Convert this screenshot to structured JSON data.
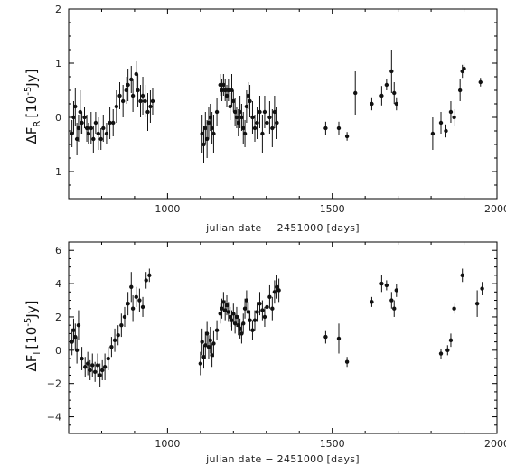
{
  "chart_data": [
    {
      "type": "scatter",
      "ylabel_main": "ΔF",
      "ylabel_sub": "R",
      "ylabel_rest": "[10",
      "ylabel_exp": "-5",
      "ylabel_unit": "Jy]",
      "xlabel": "julian date − 2451000 [days]",
      "xlim": [
        700,
        2000
      ],
      "ylim": [
        -1.5,
        2
      ],
      "xticks": [
        1000,
        1500,
        2000
      ],
      "xtick_labels": [
        "1000",
        "1500",
        "2000"
      ],
      "yticks": [
        -1,
        0,
        1,
        2
      ],
      "ytick_labels": [
        "−1",
        "0",
        "1",
        "2"
      ],
      "error_bars": true,
      "points": [
        {
          "x": 710,
          "y": -0.3,
          "e": 0.25
        },
        {
          "x": 715,
          "y": 0.0,
          "e": 0.3
        },
        {
          "x": 720,
          "y": 0.2,
          "e": 0.35
        },
        {
          "x": 725,
          "y": -0.4,
          "e": 0.3
        },
        {
          "x": 730,
          "y": -0.2,
          "e": 0.25
        },
        {
          "x": 735,
          "y": 0.1,
          "e": 0.4
        },
        {
          "x": 740,
          "y": -0.1,
          "e": 0.2
        },
        {
          "x": 748,
          "y": 0.0,
          "e": 0.2
        },
        {
          "x": 755,
          "y": -0.2,
          "e": 0.25
        },
        {
          "x": 760,
          "y": -0.3,
          "e": 0.2
        },
        {
          "x": 768,
          "y": -0.2,
          "e": 0.3
        },
        {
          "x": 775,
          "y": -0.4,
          "e": 0.25
        },
        {
          "x": 782,
          "y": -0.1,
          "e": 0.2
        },
        {
          "x": 790,
          "y": -0.3,
          "e": 0.3
        },
        {
          "x": 798,
          "y": -0.4,
          "e": 0.2
        },
        {
          "x": 805,
          "y": -0.2,
          "e": 0.25
        },
        {
          "x": 815,
          "y": -0.3,
          "e": 0.2
        },
        {
          "x": 825,
          "y": -0.1,
          "e": 0.3
        },
        {
          "x": 835,
          "y": -0.1,
          "e": 0.25
        },
        {
          "x": 845,
          "y": 0.2,
          "e": 0.3
        },
        {
          "x": 855,
          "y": 0.4,
          "e": 0.25
        },
        {
          "x": 865,
          "y": 0.3,
          "e": 0.3
        },
        {
          "x": 875,
          "y": 0.5,
          "e": 0.25
        },
        {
          "x": 880,
          "y": 0.6,
          "e": 0.3
        },
        {
          "x": 890,
          "y": 0.7,
          "e": 0.25
        },
        {
          "x": 895,
          "y": 0.4,
          "e": 0.3
        },
        {
          "x": 905,
          "y": 0.8,
          "e": 0.25
        },
        {
          "x": 910,
          "y": 0.5,
          "e": 0.3
        },
        {
          "x": 918,
          "y": 0.3,
          "e": 0.3
        },
        {
          "x": 925,
          "y": 0.4,
          "e": 0.35
        },
        {
          "x": 932,
          "y": 0.3,
          "e": 0.3
        },
        {
          "x": 940,
          "y": 0.1,
          "e": 0.35
        },
        {
          "x": 948,
          "y": 0.2,
          "e": 0.3
        },
        {
          "x": 955,
          "y": 0.3,
          "e": 0.25
        },
        {
          "x": 1105,
          "y": -0.3,
          "e": 0.35
        },
        {
          "x": 1110,
          "y": -0.5,
          "e": 0.35
        },
        {
          "x": 1115,
          "y": -0.2,
          "e": 0.3
        },
        {
          "x": 1120,
          "y": -0.4,
          "e": 0.35
        },
        {
          "x": 1125,
          "y": -0.1,
          "e": 0.3
        },
        {
          "x": 1130,
          "y": 0.0,
          "e": 0.25
        },
        {
          "x": 1135,
          "y": -0.2,
          "e": 0.3
        },
        {
          "x": 1140,
          "y": -0.3,
          "e": 0.35
        },
        {
          "x": 1150,
          "y": 0.1,
          "e": 0.25
        },
        {
          "x": 1160,
          "y": 0.6,
          "e": 0.2
        },
        {
          "x": 1165,
          "y": 0.5,
          "e": 0.2
        },
        {
          "x": 1170,
          "y": 0.6,
          "e": 0.2
        },
        {
          "x": 1175,
          "y": 0.5,
          "e": 0.2
        },
        {
          "x": 1180,
          "y": 0.4,
          "e": 0.2
        },
        {
          "x": 1185,
          "y": 0.5,
          "e": 0.2
        },
        {
          "x": 1190,
          "y": 0.2,
          "e": 0.25
        },
        {
          "x": 1195,
          "y": 0.5,
          "e": 0.3
        },
        {
          "x": 1200,
          "y": 0.3,
          "e": 0.2
        },
        {
          "x": 1205,
          "y": 0.1,
          "e": 0.25
        },
        {
          "x": 1210,
          "y": 0.0,
          "e": 0.2
        },
        {
          "x": 1215,
          "y": -0.1,
          "e": 0.25
        },
        {
          "x": 1220,
          "y": 0.1,
          "e": 0.3
        },
        {
          "x": 1225,
          "y": 0.0,
          "e": 0.25
        },
        {
          "x": 1230,
          "y": -0.2,
          "e": 0.3
        },
        {
          "x": 1235,
          "y": -0.3,
          "e": 0.25
        },
        {
          "x": 1240,
          "y": 0.2,
          "e": 0.3
        },
        {
          "x": 1245,
          "y": 0.4,
          "e": 0.25
        },
        {
          "x": 1250,
          "y": 0.3,
          "e": 0.3
        },
        {
          "x": 1258,
          "y": 0.0,
          "e": 0.3
        },
        {
          "x": 1265,
          "y": -0.2,
          "e": 0.25
        },
        {
          "x": 1272,
          "y": -0.1,
          "e": 0.3
        },
        {
          "x": 1280,
          "y": 0.1,
          "e": 0.3
        },
        {
          "x": 1288,
          "y": -0.3,
          "e": 0.35
        },
        {
          "x": 1295,
          "y": 0.1,
          "e": 0.3
        },
        {
          "x": 1302,
          "y": -0.1,
          "e": 0.35
        },
        {
          "x": 1310,
          "y": 0.0,
          "e": 0.3
        },
        {
          "x": 1318,
          "y": -0.2,
          "e": 0.35
        },
        {
          "x": 1325,
          "y": 0.1,
          "e": 0.3
        },
        {
          "x": 1332,
          "y": -0.1,
          "e": 0.3
        },
        {
          "x": 1480,
          "y": -0.2,
          "e": 0.12
        },
        {
          "x": 1520,
          "y": -0.2,
          "e": 0.12
        },
        {
          "x": 1545,
          "y": -0.35,
          "e": 0.08
        },
        {
          "x": 1570,
          "y": 0.45,
          "e": 0.4
        },
        {
          "x": 1620,
          "y": 0.25,
          "e": 0.12
        },
        {
          "x": 1650,
          "y": 0.4,
          "e": 0.18
        },
        {
          "x": 1665,
          "y": 0.6,
          "e": 0.1
        },
        {
          "x": 1680,
          "y": 0.85,
          "e": 0.4
        },
        {
          "x": 1688,
          "y": 0.45,
          "e": 0.2
        },
        {
          "x": 1695,
          "y": 0.25,
          "e": 0.12
        },
        {
          "x": 1805,
          "y": -0.3,
          "e": 0.3
        },
        {
          "x": 1830,
          "y": -0.1,
          "e": 0.2
        },
        {
          "x": 1845,
          "y": -0.25,
          "e": 0.12
        },
        {
          "x": 1860,
          "y": 0.1,
          "e": 0.2
        },
        {
          "x": 1870,
          "y": 0.0,
          "e": 0.15
        },
        {
          "x": 1888,
          "y": 0.5,
          "e": 0.2
        },
        {
          "x": 1895,
          "y": 0.85,
          "e": 0.12
        },
        {
          "x": 1900,
          "y": 0.9,
          "e": 0.1
        },
        {
          "x": 1950,
          "y": 0.65,
          "e": 0.08
        }
      ]
    },
    {
      "type": "scatter",
      "ylabel_main": "ΔF",
      "ylabel_sub": "I",
      "ylabel_rest": "[10",
      "ylabel_exp": "-5",
      "ylabel_unit": "Jy]",
      "xlabel": "julian date − 2451000 [days]",
      "xlim": [
        700,
        2000
      ],
      "ylim": [
        -5,
        6.5
      ],
      "xticks": [
        1000,
        1500,
        2000
      ],
      "xtick_labels": [
        "1000",
        "1500",
        "2000"
      ],
      "yticks": [
        -4,
        -2,
        0,
        2,
        4,
        6
      ],
      "ytick_labels": [
        "−4",
        "−2",
        "0",
        "2",
        "4",
        "6"
      ],
      "error_bars": true,
      "points": [
        {
          "x": 710,
          "y": 0.5,
          "e": 0.8
        },
        {
          "x": 715,
          "y": 1.2,
          "e": 0.7
        },
        {
          "x": 720,
          "y": 0.8,
          "e": 0.8
        },
        {
          "x": 725,
          "y": 0.0,
          "e": 0.8
        },
        {
          "x": 730,
          "y": 1.5,
          "e": 0.9
        },
        {
          "x": 740,
          "y": -0.5,
          "e": 0.7
        },
        {
          "x": 750,
          "y": -1.0,
          "e": 0.6
        },
        {
          "x": 758,
          "y": -0.8,
          "e": 0.7
        },
        {
          "x": 765,
          "y": -1.2,
          "e": 0.6
        },
        {
          "x": 772,
          "y": -0.9,
          "e": 0.7
        },
        {
          "x": 780,
          "y": -1.3,
          "e": 0.6
        },
        {
          "x": 788,
          "y": -0.9,
          "e": 0.7
        },
        {
          "x": 795,
          "y": -1.5,
          "e": 0.7
        },
        {
          "x": 802,
          "y": -1.2,
          "e": 0.6
        },
        {
          "x": 810,
          "y": -1.0,
          "e": 0.8
        },
        {
          "x": 820,
          "y": -0.5,
          "e": 0.7
        },
        {
          "x": 830,
          "y": 0.2,
          "e": 0.6
        },
        {
          "x": 840,
          "y": 0.6,
          "e": 0.7
        },
        {
          "x": 850,
          "y": 0.9,
          "e": 0.6
        },
        {
          "x": 860,
          "y": 1.5,
          "e": 0.7
        },
        {
          "x": 870,
          "y": 2.0,
          "e": 0.6
        },
        {
          "x": 880,
          "y": 2.8,
          "e": 0.7
        },
        {
          "x": 890,
          "y": 3.8,
          "e": 0.9
        },
        {
          "x": 895,
          "y": 2.5,
          "e": 0.8
        },
        {
          "x": 905,
          "y": 3.2,
          "e": 0.6
        },
        {
          "x": 915,
          "y": 3.0,
          "e": 0.7
        },
        {
          "x": 925,
          "y": 2.6,
          "e": 0.6
        },
        {
          "x": 935,
          "y": 4.2,
          "e": 0.5
        },
        {
          "x": 945,
          "y": 4.5,
          "e": 0.4
        },
        {
          "x": 1100,
          "y": -0.8,
          "e": 0.7
        },
        {
          "x": 1105,
          "y": 0.5,
          "e": 0.8
        },
        {
          "x": 1110,
          "y": -0.4,
          "e": 0.7
        },
        {
          "x": 1115,
          "y": 0.3,
          "e": 0.8
        },
        {
          "x": 1120,
          "y": 1.0,
          "e": 0.7
        },
        {
          "x": 1125,
          "y": 0.2,
          "e": 0.7
        },
        {
          "x": 1130,
          "y": 0.6,
          "e": 0.8
        },
        {
          "x": 1135,
          "y": -0.3,
          "e": 0.7
        },
        {
          "x": 1140,
          "y": 0.4,
          "e": 0.8
        },
        {
          "x": 1150,
          "y": 1.2,
          "e": 0.6
        },
        {
          "x": 1160,
          "y": 2.2,
          "e": 0.6
        },
        {
          "x": 1165,
          "y": 2.5,
          "e": 0.6
        },
        {
          "x": 1170,
          "y": 2.9,
          "e": 0.6
        },
        {
          "x": 1175,
          "y": 2.4,
          "e": 0.6
        },
        {
          "x": 1180,
          "y": 2.7,
          "e": 0.6
        },
        {
          "x": 1185,
          "y": 2.3,
          "e": 0.6
        },
        {
          "x": 1190,
          "y": 2.0,
          "e": 0.6
        },
        {
          "x": 1195,
          "y": 1.8,
          "e": 0.6
        },
        {
          "x": 1200,
          "y": 2.2,
          "e": 0.6
        },
        {
          "x": 1205,
          "y": 1.6,
          "e": 0.6
        },
        {
          "x": 1210,
          "y": 2.0,
          "e": 0.6
        },
        {
          "x": 1215,
          "y": 1.5,
          "e": 0.6
        },
        {
          "x": 1220,
          "y": 1.3,
          "e": 0.6
        },
        {
          "x": 1225,
          "y": 1.0,
          "e": 0.6
        },
        {
          "x": 1230,
          "y": 1.6,
          "e": 0.6
        },
        {
          "x": 1235,
          "y": 2.5,
          "e": 0.6
        },
        {
          "x": 1240,
          "y": 3.0,
          "e": 0.6
        },
        {
          "x": 1245,
          "y": 2.3,
          "e": 0.6
        },
        {
          "x": 1250,
          "y": 1.8,
          "e": 0.6
        },
        {
          "x": 1258,
          "y": 1.2,
          "e": 0.6
        },
        {
          "x": 1265,
          "y": 1.8,
          "e": 0.6
        },
        {
          "x": 1272,
          "y": 2.3,
          "e": 0.6
        },
        {
          "x": 1280,
          "y": 2.8,
          "e": 0.7
        },
        {
          "x": 1288,
          "y": 2.4,
          "e": 0.6
        },
        {
          "x": 1295,
          "y": 2.0,
          "e": 0.6
        },
        {
          "x": 1302,
          "y": 2.6,
          "e": 0.7
        },
        {
          "x": 1310,
          "y": 3.2,
          "e": 0.7
        },
        {
          "x": 1318,
          "y": 2.5,
          "e": 0.7
        },
        {
          "x": 1325,
          "y": 3.5,
          "e": 0.7
        },
        {
          "x": 1332,
          "y": 3.8,
          "e": 0.7
        },
        {
          "x": 1338,
          "y": 3.6,
          "e": 0.7
        },
        {
          "x": 1480,
          "y": 0.8,
          "e": 0.4
        },
        {
          "x": 1520,
          "y": 0.7,
          "e": 0.9
        },
        {
          "x": 1545,
          "y": -0.7,
          "e": 0.3
        },
        {
          "x": 1620,
          "y": 2.9,
          "e": 0.3
        },
        {
          "x": 1650,
          "y": 4.0,
          "e": 0.5
        },
        {
          "x": 1665,
          "y": 3.9,
          "e": 0.3
        },
        {
          "x": 1680,
          "y": 3.0,
          "e": 0.5
        },
        {
          "x": 1688,
          "y": 2.5,
          "e": 0.5
        },
        {
          "x": 1695,
          "y": 3.6,
          "e": 0.4
        },
        {
          "x": 1830,
          "y": -0.2,
          "e": 0.3
        },
        {
          "x": 1850,
          "y": 0.0,
          "e": 0.3
        },
        {
          "x": 1860,
          "y": 0.6,
          "e": 0.4
        },
        {
          "x": 1870,
          "y": 2.5,
          "e": 0.3
        },
        {
          "x": 1895,
          "y": 4.5,
          "e": 0.4
        },
        {
          "x": 1940,
          "y": 2.8,
          "e": 0.8
        },
        {
          "x": 1955,
          "y": 3.7,
          "e": 0.4
        }
      ]
    }
  ]
}
